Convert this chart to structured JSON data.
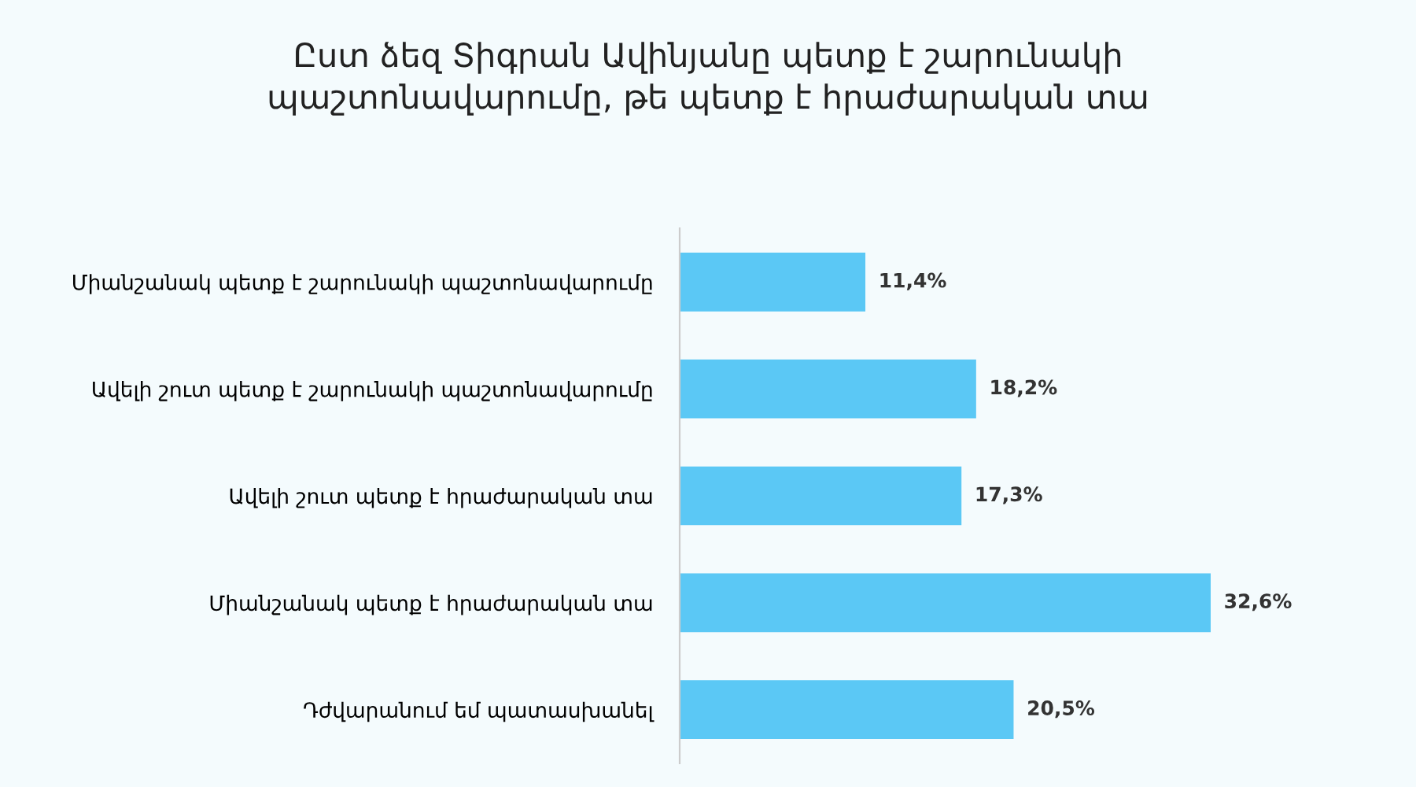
{
  "chart_data": {
    "type": "bar",
    "orientation": "horizontal",
    "title": "Ըստ ձեզ Տիգրան Ավինյանը պետք է շարունակի\nպաշտոնավարումը, թե պետք է հրաժարական տա",
    "categories": [
      "Միանշանակ պետք է շարունակի պաշտոնավարումը",
      "Ավելի շուտ պետք է շարունակի պաշտոնավարումը",
      "Ավելի շուտ պետք է հրաժարական տա",
      "Միանշանակ պետք է հրաժարական տա",
      "Դժվարանում եմ պատասխանել"
    ],
    "values": [
      11.4,
      18.2,
      17.3,
      32.6,
      20.5
    ],
    "value_labels": [
      "11,4%",
      "18,2%",
      "17,3%",
      "32,6%",
      "20,5%"
    ],
    "color": "#5bc8f5",
    "grid": false,
    "legend": false
  }
}
